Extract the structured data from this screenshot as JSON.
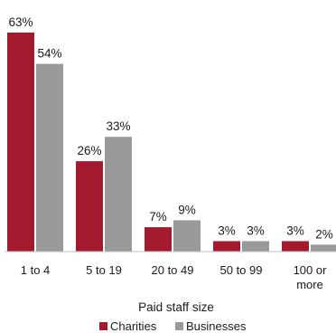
{
  "chart_data": {
    "type": "bar",
    "categories": [
      [
        "1 to 4"
      ],
      [
        "5 to 19"
      ],
      [
        "20 to 49"
      ],
      [
        "50 to 99"
      ],
      [
        "100 or",
        "more"
      ]
    ],
    "series": [
      {
        "name": "Charities",
        "values": [
          63,
          26,
          7,
          3,
          3
        ],
        "labels": [
          "63%",
          "26%",
          "7%",
          "3%",
          "3%"
        ],
        "color": "#a3192e"
      },
      {
        "name": "Businesses",
        "values": [
          54,
          33,
          9,
          3,
          2
        ],
        "labels": [
          "54%",
          "33%",
          "9%",
          "3%",
          "2%"
        ],
        "color": "#999999"
      }
    ],
    "xlabel": "Paid staff size",
    "ylabel": "",
    "ylim": [
      0,
      63
    ],
    "grid": false,
    "legend": "bottom"
  }
}
